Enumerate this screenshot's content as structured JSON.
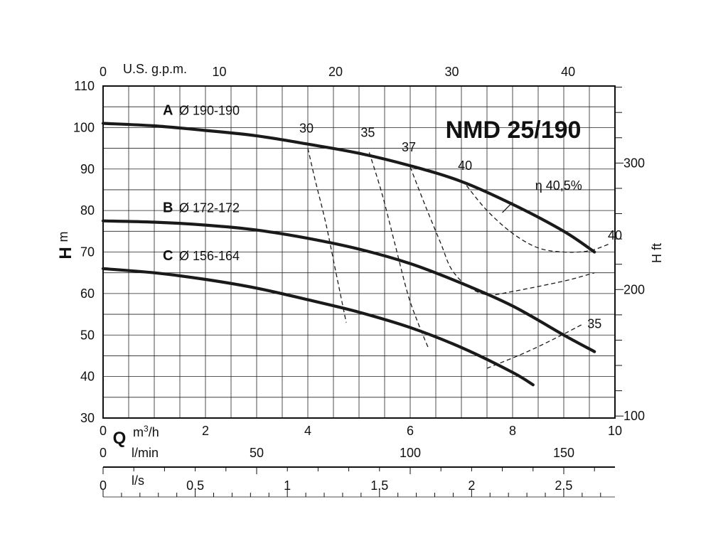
{
  "chart_data": {
    "type": "line",
    "title": "NMD 25/190",
    "axes": {
      "x_primary": {
        "label": "m³/h",
        "symbol": "Q",
        "range": [
          0,
          10
        ],
        "ticks": [
          "0",
          "2",
          "4",
          "6",
          "8",
          "10"
        ]
      },
      "x_lmin": {
        "label": "l/min",
        "range": [
          0,
          166.67
        ],
        "ticks": [
          "0",
          "50",
          "100",
          "150"
        ]
      },
      "x_ls": {
        "label": "l/s",
        "range": [
          0,
          2.778
        ],
        "ticks": [
          "0",
          "0.5",
          "1",
          "1.5",
          "2",
          "2.5"
        ]
      },
      "x_top": {
        "label": "U.S. g.p.m.",
        "range": [
          0,
          44.03
        ],
        "ticks": [
          "0",
          "10",
          "20",
          "30",
          "40"
        ]
      },
      "y_left": {
        "label_bold": "H",
        "label_unit": "m",
        "range": [
          30,
          110
        ],
        "ticks": [
          "30",
          "40",
          "50",
          "60",
          "70",
          "80",
          "90",
          "100",
          "110"
        ]
      },
      "y_right": {
        "label": "H ft",
        "ticks": [
          "100",
          "200",
          "300"
        ]
      }
    },
    "grid": true,
    "series": [
      {
        "letter": "A",
        "name": "Ø 190-190",
        "points": [
          [
            0,
            101
          ],
          [
            1,
            100.4
          ],
          [
            2,
            99.3
          ],
          [
            3,
            98
          ],
          [
            4,
            96
          ],
          [
            5,
            93.8
          ],
          [
            6,
            90.8
          ],
          [
            7,
            87
          ],
          [
            8,
            81.5
          ],
          [
            9,
            75
          ],
          [
            9.6,
            70
          ]
        ]
      },
      {
        "letter": "B",
        "name": "Ø 172-172",
        "points": [
          [
            0,
            77.5
          ],
          [
            1,
            77.2
          ],
          [
            2,
            76.5
          ],
          [
            3,
            75.3
          ],
          [
            4,
            73.3
          ],
          [
            5,
            70.7
          ],
          [
            6,
            67.2
          ],
          [
            7,
            62.5
          ],
          [
            8,
            57
          ],
          [
            9,
            50
          ],
          [
            9.6,
            46
          ]
        ]
      },
      {
        "letter": "C",
        "name": "Ø 156-164",
        "points": [
          [
            0,
            66
          ],
          [
            1,
            65
          ],
          [
            2,
            63.4
          ],
          [
            3,
            61.3
          ],
          [
            4,
            58.5
          ],
          [
            5,
            55.5
          ],
          [
            6,
            51.8
          ],
          [
            7,
            47
          ],
          [
            8,
            41
          ],
          [
            8.4,
            38
          ]
        ]
      }
    ],
    "efficiency_curves": [
      {
        "label": "30",
        "points": [
          [
            4.0,
            95
          ],
          [
            4.15,
            87
          ],
          [
            4.35,
            77
          ],
          [
            4.55,
            65
          ],
          [
            4.75,
            53
          ]
        ]
      },
      {
        "label": "35",
        "points": [
          [
            5.2,
            94
          ],
          [
            5.45,
            84
          ],
          [
            5.7,
            72
          ],
          [
            5.95,
            60
          ],
          [
            6.15,
            53
          ],
          [
            6.35,
            47
          ]
        ]
      },
      {
        "label": "35",
        "points": [
          [
            7.5,
            42
          ],
          [
            8.2,
            45.5
          ],
          [
            8.8,
            49
          ],
          [
            9.35,
            52.5
          ]
        ]
      },
      {
        "label": "37",
        "points": [
          [
            6.0,
            90.5
          ],
          [
            6.3,
            81
          ],
          [
            6.6,
            72
          ],
          [
            6.8,
            66
          ],
          [
            7.1,
            62
          ],
          [
            7.5,
            59.7
          ],
          [
            8.0,
            60.5
          ],
          [
            9.0,
            63
          ],
          [
            9.6,
            65
          ]
        ]
      },
      {
        "label": "40",
        "points": [
          [
            7.1,
            86
          ],
          [
            7.5,
            80
          ],
          [
            8.0,
            74.5
          ],
          [
            8.5,
            71
          ],
          [
            9.0,
            70
          ],
          [
            9.5,
            70.3
          ],
          [
            9.9,
            72
          ]
        ]
      }
    ],
    "annotations": [
      {
        "text": "η 40,5%",
        "at": [
          8.9,
          85
        ]
      },
      {
        "text": "40",
        "at": [
          10.0,
          73
        ]
      }
    ]
  }
}
